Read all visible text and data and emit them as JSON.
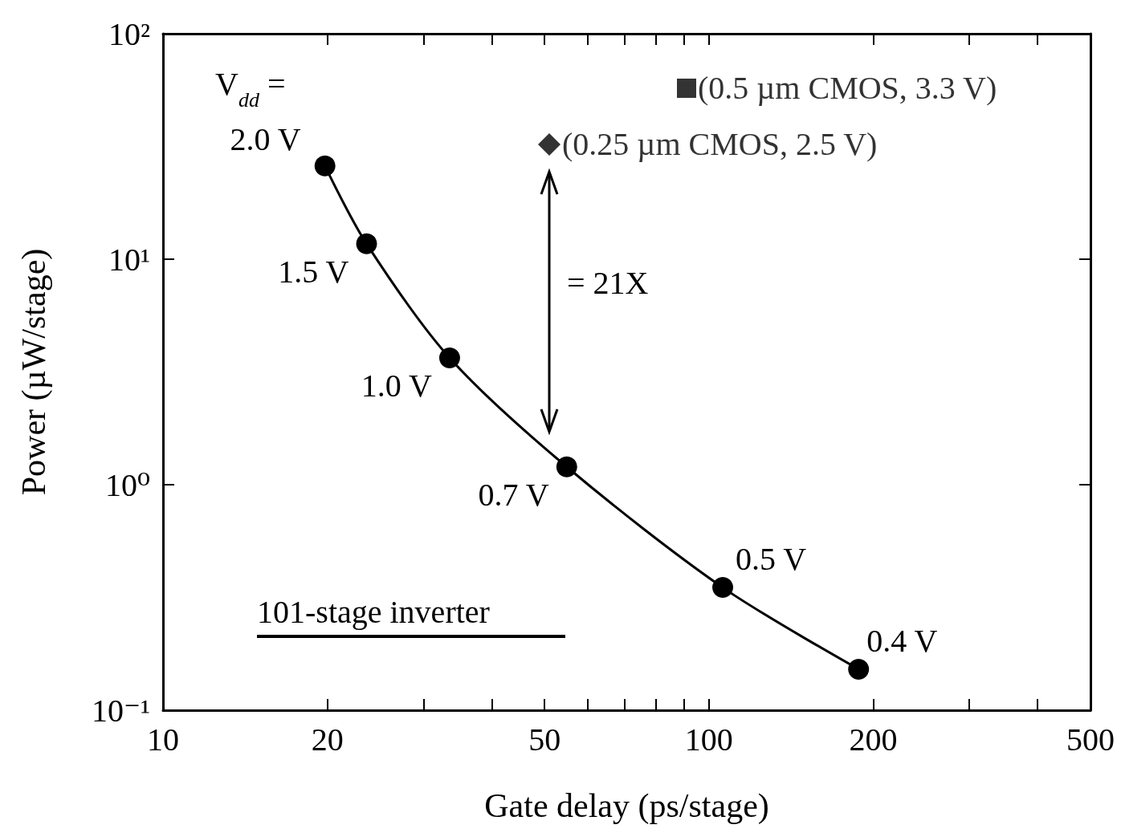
{
  "chart_data": {
    "type": "line",
    "xlabel": "Gate delay (ps/stage)",
    "ylabel": "Power (µW/stage)",
    "log": "xy",
    "xlim": [
      10,
      500
    ],
    "xticks": [
      10,
      20,
      {
        "value": 30,
        "label": null
      },
      {
        "value": 40,
        "label": null
      },
      50,
      {
        "value": 60,
        "label": null
      },
      {
        "value": 70,
        "label": null
      },
      {
        "value": 80,
        "label": null
      },
      {
        "value": 90,
        "label": null
      },
      100,
      200,
      {
        "value": 300,
        "label": null
      },
      {
        "value": 400,
        "label": null
      },
      500
    ],
    "ylim": [
      0.1,
      100
    ],
    "yticks": [
      {
        "value": 0.1,
        "label": "10⁻¹"
      },
      {
        "value": 1,
        "label": "10⁰"
      },
      {
        "value": 10,
        "label": "10¹"
      },
      {
        "value": 100,
        "label": "10²"
      }
    ],
    "grid": false,
    "legend": "top right",
    "series": [
      {
        "color": "#000000",
        "marker": "circle",
        "line_style": "solid",
        "x": [
          19.8,
          23.6,
          33.5,
          54.9,
          106,
          188
        ],
        "values": [
          25.9,
          11.7,
          3.65,
          1.2,
          0.35,
          0.152
        ]
      },
      {
        "type": "scatter",
        "name": "(0.25 µm CMOS, 2.5 V)",
        "color": "#000000",
        "marker": "diamond",
        "x": [
          51
        ],
        "values": [
          32.3
        ]
      },
      {
        "type": "scatter",
        "name": "(0.5 µm CMOS, 3.3 V)",
        "color": "#000000",
        "marker": "square",
        "x": [
          91
        ],
        "values": [
          57.3
        ]
      }
    ],
    "annotations": [
      "V$_{dd}$ =",
      {
        "text": "2.0 V",
        "x": 19.8,
        "y": 25.9
      },
      {
        "text": "1.5 V",
        "x": 23.6,
        "y": 11.7
      },
      {
        "text": "1.0 V",
        "x": 33.5,
        "y": 3.65
      },
      {
        "text": "0.7 V",
        "x": 54.9,
        "y": 1.2
      },
      {
        "text": "0.5 V",
        "x": 106,
        "y": 0.35
      },
      {
        "text": "0.4 V",
        "x": 188,
        "y": 0.152
      },
      "= 21X",
      "101-stage inverter"
    ]
  }
}
